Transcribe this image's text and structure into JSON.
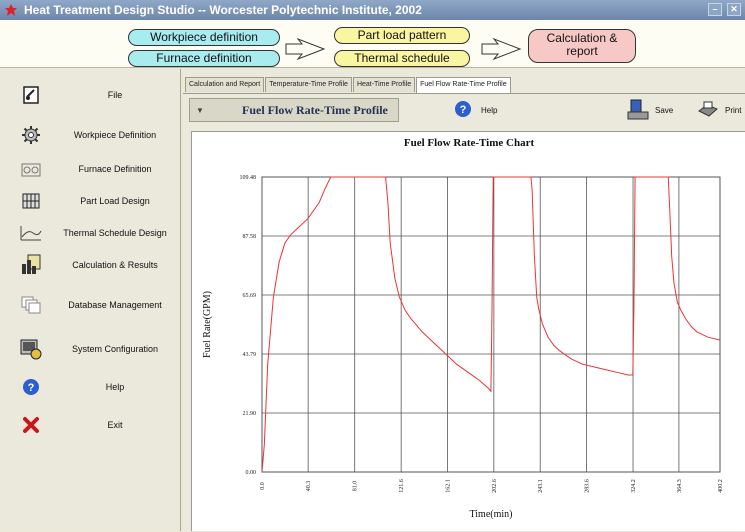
{
  "window": {
    "title": "Heat Treatment Design Studio -- Worcester Polytechnic Institute, 2002"
  },
  "workflow": {
    "workpiece": "Workpiece definition",
    "furnace": "Furnace definition",
    "partload": "Part load pattern",
    "thermal": "Thermal schedule",
    "calc_line1": "Calculation &",
    "calc_line2": "report"
  },
  "sidebar": {
    "items": [
      {
        "label": "File",
        "icon": "file-icon"
      },
      {
        "label": "Workpiece Definition",
        "icon": "gear-icon"
      },
      {
        "label": "Furnace Definition",
        "icon": "furnace-icon"
      },
      {
        "label": "Part Load Design",
        "icon": "grid-icon"
      },
      {
        "label": "Thermal Schedule Design",
        "icon": "curve-icon"
      },
      {
        "label": "Calculation & Results",
        "icon": "chart-icon"
      },
      {
        "label": "Database Management",
        "icon": "database-icon"
      },
      {
        "label": "System Configuration",
        "icon": "config-icon"
      },
      {
        "label": "Help",
        "icon": "help-icon"
      },
      {
        "label": "Exit",
        "icon": "exit-icon"
      }
    ]
  },
  "tabs": [
    {
      "label": "Calculation and Report",
      "active": false
    },
    {
      "label": "Temperature-Time Profile",
      "active": false
    },
    {
      "label": "Heat-Time Profile",
      "active": false
    },
    {
      "label": "Fuel Flow Rate-Time Profile",
      "active": true
    }
  ],
  "toolbar": {
    "profile_select": "Fuel Flow Rate-Time Profile",
    "help_label": "Help",
    "save_label": "Save",
    "print_label": "Print"
  },
  "chart_data": {
    "type": "line",
    "title": "Fuel Flow Rate-Time Chart",
    "xlabel": "Time(min)",
    "ylabel": "Fuel Rate(GPM)",
    "xlim": [
      0,
      400.2
    ],
    "ylim": [
      0,
      109.48
    ],
    "x_ticks": [
      "0.0",
      "40.3",
      "81.0",
      "121.6",
      "162.1",
      "202.6",
      "243.1",
      "283.6",
      "324.2",
      "364.3",
      "400.2"
    ],
    "y_ticks": [
      "0.00",
      "21.90",
      "43.79",
      "65.69",
      "87.58",
      "109.48"
    ],
    "grid": true,
    "line_color": "#ee3333",
    "series": [
      {
        "x": [
          0,
          2,
          5,
          10,
          15,
          20,
          25,
          30,
          40,
          50,
          55,
          60,
          65,
          70,
          80,
          90,
          100,
          108,
          110,
          112,
          116,
          120,
          125,
          130,
          140,
          150,
          160,
          170,
          180,
          190,
          198,
          200,
          201,
          202,
          203,
          205,
          210,
          220,
          235,
          236,
          238,
          240,
          242,
          245,
          250,
          255,
          260,
          270,
          280,
          290,
          300,
          310,
          320,
          324,
          325,
          326,
          327,
          330,
          335,
          340,
          350,
          355,
          356,
          358,
          360,
          363,
          366,
          370,
          375,
          380,
          390,
          400
        ],
        "y": [
          0,
          10,
          40,
          65,
          78,
          85,
          88,
          90,
          94,
          100,
          105,
          109.48,
          109.48,
          109.48,
          109.48,
          109.48,
          109.48,
          109.48,
          100,
          85,
          72,
          65,
          60,
          57,
          52,
          48,
          44,
          40,
          37,
          34,
          31,
          30,
          60,
          109.48,
          109.48,
          109.48,
          109.48,
          109.48,
          109.48,
          105,
          80,
          65,
          60,
          55,
          50,
          47,
          45,
          42,
          40,
          39,
          38,
          37,
          36,
          36,
          60,
          109.48,
          109.48,
          109.48,
          109.48,
          109.48,
          109.48,
          109.48,
          100,
          80,
          70,
          63,
          60,
          57,
          54,
          52,
          50,
          49
        ]
      }
    ]
  }
}
